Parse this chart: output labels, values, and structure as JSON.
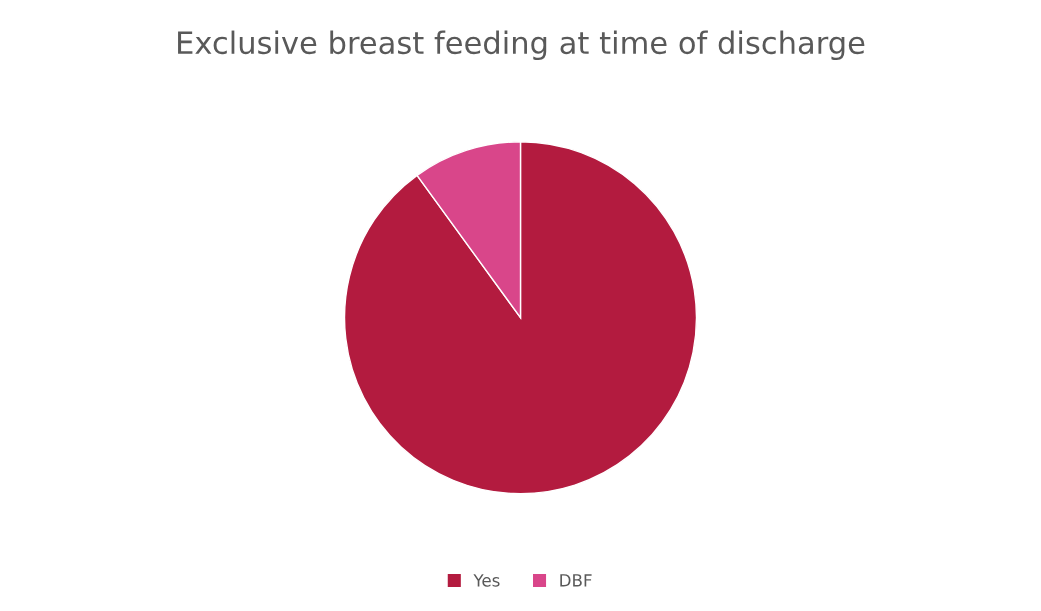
{
  "chart_data": {
    "type": "pie",
    "title": "Exclusive breast feeding at time of discharge",
    "categories": [
      "Yes",
      "DBF"
    ],
    "values": [
      90,
      10
    ],
    "colors": [
      "#b31b3f",
      "#d9468a"
    ],
    "legend": "bottom"
  }
}
